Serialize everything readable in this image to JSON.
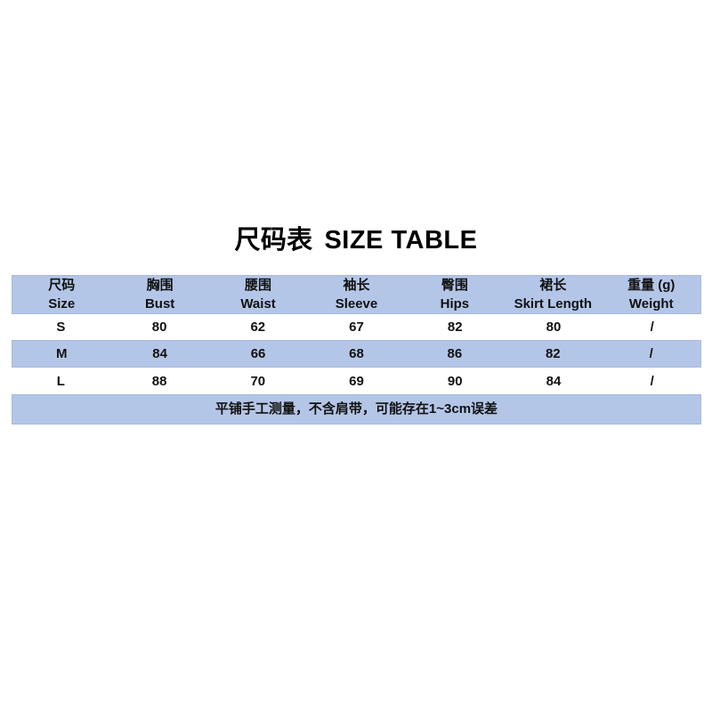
{
  "page": {
    "background": "#ffffff"
  },
  "colors": {
    "band_blue": "#b4c6e7",
    "band_border": "#a9b8dc",
    "text": "#111111",
    "title_text": "#000000"
  },
  "title": {
    "cn": "尺码表",
    "en": "SIZE TABLE"
  },
  "table": {
    "header": {
      "cols": [
        {
          "cn": "尺码",
          "en": "Size"
        },
        {
          "cn": "胸围",
          "en": "Bust"
        },
        {
          "cn": "腰围",
          "en": "Waist"
        },
        {
          "cn": "袖长",
          "en": "Sleeve"
        },
        {
          "cn": "臀围",
          "en": "Hips"
        },
        {
          "cn": "裙长",
          "en": "Skirt Length"
        },
        {
          "cn": "重量 (g)",
          "en": "Weight"
        }
      ]
    },
    "rows": [
      {
        "cells": [
          "S",
          "80",
          "62",
          "67",
          "82",
          "80",
          "/"
        ]
      },
      {
        "cells": [
          "M",
          "84",
          "66",
          "68",
          "86",
          "82",
          "/"
        ]
      },
      {
        "cells": [
          "L",
          "88",
          "70",
          "69",
          "90",
          "84",
          "/"
        ]
      }
    ],
    "note": "平铺手工测量，不含肩带，可能存在1~3cm误差"
  },
  "chart_data": {
    "type": "table",
    "title": "尺码表 SIZE TABLE",
    "columns": [
      {
        "cn": "尺码",
        "en": "Size"
      },
      {
        "cn": "胸围",
        "en": "Bust"
      },
      {
        "cn": "腰围",
        "en": "Waist"
      },
      {
        "cn": "袖长",
        "en": "Sleeve"
      },
      {
        "cn": "臀围",
        "en": "Hips"
      },
      {
        "cn": "裙长",
        "en": "Skirt Length"
      },
      {
        "cn": "重量 (g)",
        "en": "Weight"
      }
    ],
    "rows": [
      {
        "size": "S",
        "bust": 80,
        "waist": 62,
        "sleeve": 67,
        "hips": 82,
        "skirt_length": 80,
        "weight": "/"
      },
      {
        "size": "M",
        "bust": 84,
        "waist": 66,
        "sleeve": 68,
        "hips": 86,
        "skirt_length": 82,
        "weight": "/"
      },
      {
        "size": "L",
        "bust": 88,
        "waist": 70,
        "sleeve": 69,
        "hips": 90,
        "skirt_length": 84,
        "weight": "/"
      }
    ],
    "highlighted_rows": [
      "M"
    ],
    "note": "平铺手工测量，不含肩带，可能存在1~3cm误差",
    "layout": "header and alternating M row and footer note have light periwinkle fill #b4c6e7; rows S and L are white; no vertical gridlines"
  }
}
